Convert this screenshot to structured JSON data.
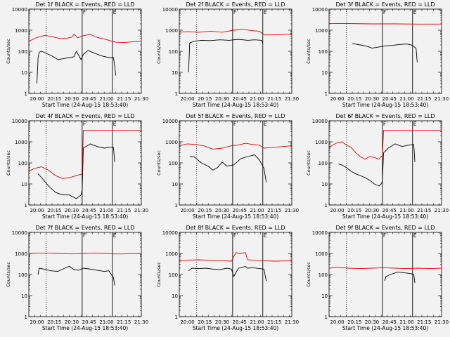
{
  "page": {
    "background": "#f2f2f2",
    "events_color": "#000000",
    "lld_color": "#e00000",
    "common": {
      "title_suffix": "BLACK = Events, RED = LLD",
      "ylabel": "Counts/sec",
      "xlabel": "Start Time (24-Aug-15 18:53:40)",
      "yticks": [
        "1",
        "10",
        "100",
        "1000",
        "10000"
      ],
      "xlabel_layout": "stacked"
    }
  },
  "chart_data": [
    {
      "type": "line",
      "panel": "1f",
      "title": "Det 1f BLACK = Events, RED = LLD",
      "scale": "log-y",
      "xlim": [
        1193,
        1290
      ],
      "ylim": [
        1,
        10000
      ],
      "xticks": [
        1200,
        1215,
        1230,
        1245,
        1260,
        1275,
        1290
      ],
      "xticklabels": [
        "20:00",
        "20:15",
        "20:30",
        "20:45",
        "21:00",
        "21:15",
        "21:30"
      ],
      "flags": [
        {
          "x": 1208,
          "style": "dotted",
          "label": ""
        },
        {
          "x": 1239,
          "style": "solid",
          "label": "F"
        },
        {
          "x": 1265,
          "style": "solid",
          "label": "E"
        }
      ],
      "series": [
        {
          "role": "lld",
          "x": [
            1193,
            1200,
            1207,
            1214,
            1220,
            1226,
            1230,
            1232,
            1235,
            1240,
            1246,
            1252,
            1258,
            1264,
            1268,
            1275,
            1282,
            1290
          ],
          "y": [
            300,
            450,
            570,
            480,
            400,
            420,
            460,
            650,
            430,
            550,
            630,
            450,
            380,
            310,
            270,
            260,
            280,
            300
          ]
        },
        {
          "role": "events",
          "x": [
            1200,
            1201,
            1202,
            1204,
            1208,
            1213,
            1218,
            1223,
            1228,
            1232,
            1234,
            1238,
            1240,
            1244,
            1250,
            1256,
            1262,
            1266,
            1267,
            1268
          ],
          "y": [
            3,
            50,
            90,
            100,
            80,
            60,
            40,
            45,
            50,
            55,
            100,
            40,
            70,
            110,
            80,
            60,
            50,
            50,
            20,
            7
          ]
        }
      ]
    },
    {
      "type": "line",
      "panel": "2f",
      "title": "Det 2f BLACK = Events, RED = LLD",
      "scale": "log-y",
      "xlim": [
        1193,
        1290
      ],
      "ylim": [
        1,
        10000
      ],
      "xticks": [
        1200,
        1215,
        1230,
        1245,
        1260,
        1275,
        1290
      ],
      "xticklabels": [
        "20:00",
        "20:15",
        "20:30",
        "20:45",
        "21:00",
        "21:15",
        "21:30"
      ],
      "flags": [
        {
          "x": 1208,
          "style": "dotted",
          "label": ""
        },
        {
          "x": 1239,
          "style": "solid",
          "label": "F"
        },
        {
          "x": 1265,
          "style": "solid",
          "label": "E"
        }
      ],
      "series": [
        {
          "role": "lld",
          "x": [
            1193,
            1200,
            1210,
            1220,
            1230,
            1240,
            1248,
            1256,
            1262,
            1266,
            1275,
            1290
          ],
          "y": [
            800,
            850,
            800,
            900,
            800,
            1000,
            1100,
            950,
            900,
            600,
            600,
            650
          ]
        },
        {
          "role": "events",
          "x": [
            1201,
            1202,
            1206,
            1212,
            1220,
            1228,
            1236,
            1244,
            1252,
            1258,
            1264,
            1265
          ],
          "y": [
            10,
            250,
            300,
            330,
            320,
            350,
            330,
            370,
            330,
            350,
            330,
            250
          ]
        }
      ]
    },
    {
      "type": "line",
      "panel": "3f",
      "title": "Det 3f BLACK = Events, RED = LLD",
      "scale": "log-y",
      "xlim": [
        1193,
        1290
      ],
      "ylim": [
        1,
        10000
      ],
      "xticks": [
        1200,
        1215,
        1230,
        1245,
        1260,
        1275,
        1290
      ],
      "xticklabels": [
        "20:00",
        "20:15",
        "20:30",
        "20:45",
        "21:00",
        "21:15",
        "21:30"
      ],
      "flags": [
        {
          "x": 1208,
          "style": "dotted",
          "label": ""
        },
        {
          "x": 1239,
          "style": "solid",
          "label": "F"
        },
        {
          "x": 1265,
          "style": "solid",
          "label": "E"
        }
      ],
      "series": [
        {
          "role": "lld",
          "x": [
            1193,
            1210,
            1230,
            1250,
            1270,
            1290
          ],
          "y": [
            2100,
            2050,
            2000,
            2000,
            1950,
            1950
          ]
        },
        {
          "role": "events",
          "x": [
            1213,
            1220,
            1226,
            1230,
            1236,
            1242,
            1248,
            1254,
            1260,
            1264,
            1268,
            1269
          ],
          "y": [
            230,
            200,
            170,
            140,
            160,
            180,
            190,
            210,
            220,
            200,
            140,
            30
          ]
        }
      ]
    },
    {
      "type": "line",
      "panel": "4f",
      "title": "Det 4f BLACK = Events, RED = LLD",
      "scale": "log-y",
      "xlim": [
        1193,
        1290
      ],
      "ylim": [
        1,
        10000
      ],
      "xticks": [
        1200,
        1215,
        1230,
        1245,
        1260,
        1275,
        1290
      ],
      "xticklabels": [
        "20:00",
        "20:15",
        "20:30",
        "20:45",
        "21:00",
        "21:15",
        "21:30"
      ],
      "flags": [
        {
          "x": 1208,
          "style": "dotted",
          "label": ""
        },
        {
          "x": 1239,
          "style": "solid",
          "label": "F"
        },
        {
          "x": 1265,
          "style": "solid",
          "label": "E"
        }
      ],
      "series": [
        {
          "role": "lld",
          "x": [
            1193,
            1198,
            1204,
            1210,
            1216,
            1222,
            1228,
            1234,
            1239,
            1240,
            1241,
            1290
          ],
          "y": [
            40,
            55,
            65,
            45,
            25,
            18,
            20,
            25,
            30,
            3500,
            3500,
            3500
          ]
        },
        {
          "role": "events",
          "x": [
            1201,
            1204,
            1210,
            1216,
            1222,
            1228,
            1234,
            1238,
            1239,
            1240,
            1246,
            1252,
            1258,
            1262,
            1266,
            1267
          ],
          "y": [
            30,
            20,
            8,
            4,
            3,
            3,
            2,
            3,
            5,
            500,
            800,
            600,
            500,
            550,
            550,
            110
          ]
        }
      ]
    },
    {
      "type": "line",
      "panel": "5f",
      "title": "Det 5f BLACK = Events, RED = LLD",
      "scale": "log-y",
      "xlim": [
        1193,
        1290
      ],
      "ylim": [
        1,
        10000
      ],
      "xticks": [
        1200,
        1215,
        1230,
        1245,
        1260,
        1275,
        1290
      ],
      "xticklabels": [
        "20:00",
        "20:15",
        "20:30",
        "20:45",
        "21:00",
        "21:15",
        "21:30"
      ],
      "flags": [
        {
          "x": 1208,
          "style": "dotted",
          "label": ""
        },
        {
          "x": 1239,
          "style": "solid",
          "label": "F"
        },
        {
          "x": 1265,
          "style": "solid",
          "label": "E"
        }
      ],
      "series": [
        {
          "role": "lld",
          "x": [
            1193,
            1200,
            1206,
            1214,
            1222,
            1230,
            1238,
            1244,
            1250,
            1256,
            1262,
            1266,
            1275,
            1290
          ],
          "y": [
            650,
            800,
            750,
            650,
            450,
            500,
            650,
            700,
            850,
            750,
            700,
            500,
            550,
            650
          ]
        },
        {
          "role": "events",
          "x": [
            1202,
            1206,
            1212,
            1218,
            1222,
            1226,
            1230,
            1234,
            1240,
            1246,
            1252,
            1258,
            1262,
            1266,
            1268
          ],
          "y": [
            200,
            190,
            100,
            70,
            45,
            60,
            110,
            70,
            80,
            160,
            200,
            240,
            140,
            55,
            12
          ]
        }
      ]
    },
    {
      "type": "line",
      "panel": "6f",
      "title": "Det 6f BLACK = Events, RED = LLD",
      "scale": "log-y",
      "xlim": [
        1193,
        1290
      ],
      "ylim": [
        1,
        10000
      ],
      "xticks": [
        1200,
        1215,
        1230,
        1245,
        1260,
        1275,
        1290
      ],
      "xticklabels": [
        "20:00",
        "20:15",
        "20:30",
        "20:45",
        "21:00",
        "21:15",
        "21:30"
      ],
      "flags": [
        {
          "x": 1208,
          "style": "dotted",
          "label": ""
        },
        {
          "x": 1239,
          "style": "solid",
          "label": "F"
        },
        {
          "x": 1265,
          "style": "solid",
          "label": "E"
        }
      ],
      "series": [
        {
          "role": "lld",
          "x": [
            1193,
            1196,
            1200,
            1204,
            1208,
            1212,
            1216,
            1220,
            1224,
            1228,
            1232,
            1236,
            1238,
            1239,
            1240,
            1290
          ],
          "y": [
            500,
            700,
            900,
            1000,
            700,
            550,
            300,
            200,
            150,
            200,
            180,
            150,
            200,
            220,
            3500,
            3500
          ]
        },
        {
          "role": "events",
          "x": [
            1201,
            1204,
            1208,
            1212,
            1216,
            1220,
            1224,
            1228,
            1232,
            1236,
            1238,
            1239,
            1240,
            1244,
            1250,
            1256,
            1262,
            1266,
            1267
          ],
          "y": [
            90,
            80,
            60,
            40,
            30,
            25,
            20,
            15,
            10,
            8,
            10,
            14,
            300,
            500,
            800,
            600,
            700,
            750,
            110
          ]
        }
      ]
    },
    {
      "type": "line",
      "panel": "7f",
      "title": "Det 7f BLACK = Events, RED = LLD",
      "scale": "log-y",
      "xlim": [
        1193,
        1290
      ],
      "ylim": [
        1,
        10000
      ],
      "xticks": [
        1200,
        1215,
        1230,
        1245,
        1260,
        1275,
        1290
      ],
      "xticklabels": [
        "20:00",
        "20:15",
        "20:30",
        "20:45",
        "21:00",
        "21:15",
        "21:30"
      ],
      "flags": [
        {
          "x": 1208,
          "style": "dotted",
          "label": ""
        },
        {
          "x": 1239,
          "style": "solid",
          "label": "F"
        },
        {
          "x": 1265,
          "style": "solid",
          "label": "E"
        }
      ],
      "series": [
        {
          "role": "lld",
          "x": [
            1193,
            1200,
            1210,
            1220,
            1230,
            1240,
            1250,
            1260,
            1266,
            1275,
            1290
          ],
          "y": [
            1000,
            1050,
            1050,
            1000,
            950,
            1000,
            1050,
            1000,
            950,
            950,
            1000
          ]
        },
        {
          "role": "events",
          "x": [
            1201,
            1202,
            1206,
            1212,
            1218,
            1224,
            1228,
            1232,
            1236,
            1240,
            1246,
            1252,
            1258,
            1262,
            1266,
            1267
          ],
          "y": [
            100,
            200,
            180,
            150,
            140,
            200,
            250,
            170,
            160,
            200,
            180,
            160,
            140,
            150,
            70,
            30
          ]
        }
      ]
    },
    {
      "type": "line",
      "panel": "8f",
      "title": "Det 8f BLACK = Events, RED = LLD",
      "scale": "log-y",
      "xlim": [
        1193,
        1290
      ],
      "ylim": [
        1,
        10000
      ],
      "xticks": [
        1200,
        1215,
        1230,
        1245,
        1260,
        1275,
        1290
      ],
      "xticklabels": [
        "20:00",
        "20:15",
        "20:30",
        "20:45",
        "21:00",
        "21:15",
        "21:30"
      ],
      "flags": [
        {
          "x": 1208,
          "style": "dotted",
          "label": ""
        },
        {
          "x": 1239,
          "style": "solid",
          "label": "F"
        },
        {
          "x": 1265,
          "style": "solid",
          "label": "E"
        }
      ],
      "series": [
        {
          "role": "lld",
          "x": [
            1193,
            1200,
            1210,
            1220,
            1230,
            1238,
            1240,
            1241,
            1242,
            1245,
            1250,
            1251,
            1252,
            1256,
            1262,
            1266,
            1275,
            1290
          ],
          "y": [
            450,
            480,
            500,
            470,
            450,
            430,
            700,
            900,
            1100,
            1000,
            1100,
            700,
            500,
            480,
            460,
            450,
            430,
            450
          ]
        },
        {
          "role": "events",
          "x": [
            1201,
            1204,
            1210,
            1216,
            1222,
            1228,
            1234,
            1238,
            1240,
            1244,
            1250,
            1252,
            1256,
            1262,
            1266,
            1268
          ],
          "y": [
            150,
            200,
            190,
            200,
            180,
            170,
            200,
            180,
            80,
            200,
            240,
            200,
            210,
            190,
            180,
            50
          ]
        }
      ]
    },
    {
      "type": "line",
      "panel": "9f",
      "title": "Det 9f BLACK = Events, RED = LLD",
      "scale": "log-y",
      "xlim": [
        1193,
        1290
      ],
      "ylim": [
        1,
        10000
      ],
      "xticks": [
        1200,
        1215,
        1230,
        1245,
        1260,
        1275,
        1290
      ],
      "xticklabels": [
        "20:00",
        "20:15",
        "20:30",
        "20:45",
        "21:00",
        "21:15",
        "21:30"
      ],
      "flags": [
        {
          "x": 1208,
          "style": "dotted",
          "label": ""
        },
        {
          "x": 1239,
          "style": "solid",
          "label": "F"
        },
        {
          "x": 1265,
          "style": "solid",
          "label": "E"
        }
      ],
      "series": [
        {
          "role": "lld",
          "x": [
            1193,
            1200,
            1210,
            1220,
            1230,
            1240,
            1250,
            1260,
            1270,
            1280,
            1290
          ],
          "y": [
            200,
            220,
            200,
            190,
            200,
            210,
            200,
            190,
            200,
            190,
            200
          ]
        },
        {
          "role": "events",
          "x": [
            1241,
            1242,
            1246,
            1252,
            1258,
            1264,
            1266,
            1267
          ],
          "y": [
            50,
            80,
            100,
            130,
            120,
            110,
            100,
            40
          ]
        }
      ]
    }
  ]
}
